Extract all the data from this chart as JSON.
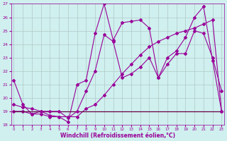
{
  "xlabel": "Windchill (Refroidissement éolien,°C)",
  "bg_color": "#cff0ee",
  "grid_color": "#b0c8c8",
  "line_color1": "#990099",
  "line_color2": "#660044",
  "x_min": 0,
  "x_max": 23,
  "y_min": 18,
  "y_max": 27,
  "line1_x": [
    0,
    1,
    2,
    3,
    4,
    5,
    6,
    7,
    8,
    9,
    10,
    11,
    12,
    13,
    14,
    15,
    16,
    17,
    18,
    19,
    20,
    21,
    22,
    23
  ],
  "line1_y": [
    21.3,
    19.5,
    18.8,
    19.0,
    18.7,
    18.6,
    18.2,
    21.0,
    21.3,
    24.8,
    27.0,
    24.3,
    25.6,
    25.7,
    25.8,
    25.2,
    21.5,
    22.5,
    23.3,
    23.3,
    25.0,
    24.8,
    23.0,
    20.5
  ],
  "line2_x": [
    0,
    1,
    2,
    3,
    4,
    5,
    6,
    7,
    8,
    9,
    10,
    11,
    12,
    13,
    14,
    15,
    16,
    17,
    18,
    19,
    20,
    21,
    22,
    23
  ],
  "line2_y": [
    19.0,
    19.0,
    18.8,
    18.8,
    18.6,
    18.6,
    18.6,
    18.6,
    19.2,
    19.5,
    20.2,
    21.0,
    21.8,
    22.5,
    23.2,
    23.8,
    24.2,
    24.5,
    24.8,
    25.0,
    25.2,
    25.5,
    25.8,
    19.0
  ],
  "line3_x": [
    0,
    1,
    2,
    3,
    4,
    5,
    6,
    7,
    8,
    9,
    10,
    11,
    12,
    13,
    14,
    15,
    16,
    17,
    18,
    19,
    20,
    21,
    22,
    23
  ],
  "line3_y": [
    19.0,
    19.0,
    19.0,
    19.0,
    19.0,
    19.0,
    19.0,
    19.0,
    19.0,
    19.0,
    19.0,
    19.0,
    19.0,
    19.0,
    19.0,
    19.0,
    19.0,
    19.0,
    19.0,
    19.0,
    19.0,
    19.0,
    19.0,
    19.0
  ],
  "line4_x": [
    0,
    1,
    2,
    3,
    4,
    5,
    6,
    7,
    8,
    9,
    10,
    11,
    12,
    13,
    14,
    15,
    16,
    17,
    18,
    19,
    20,
    21,
    22,
    23
  ],
  "line4_y": [
    19.5,
    19.3,
    19.2,
    19.0,
    19.0,
    19.0,
    18.5,
    19.0,
    20.5,
    22.0,
    24.7,
    24.2,
    21.5,
    21.8,
    22.3,
    23.0,
    21.5,
    23.0,
    23.5,
    24.5,
    26.0,
    26.8,
    22.8,
    19.0
  ]
}
